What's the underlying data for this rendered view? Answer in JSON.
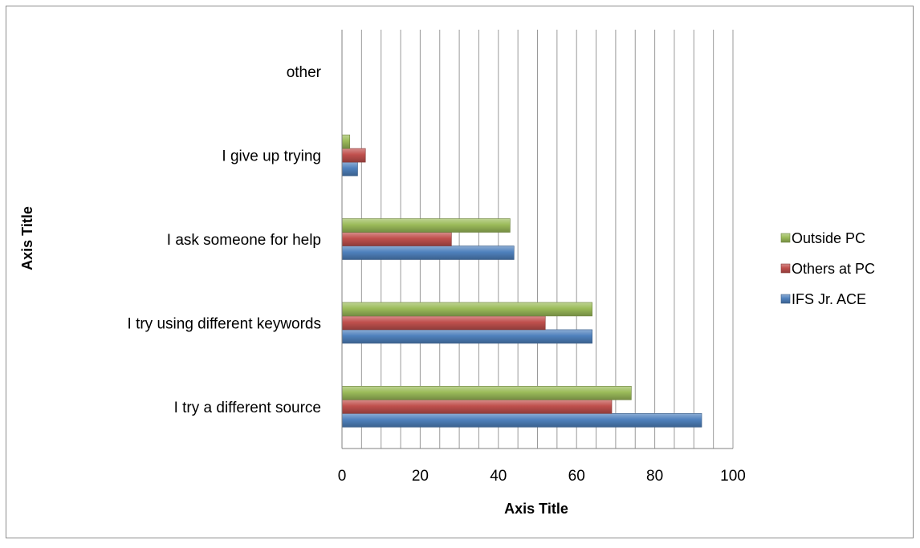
{
  "chart_data": {
    "type": "bar",
    "orientation": "horizontal",
    "categories": [
      "I try a different source",
      "I try using different keywords",
      "I ask someone for help",
      "I give up trying",
      "other"
    ],
    "series": [
      {
        "name": "IFS Jr. ACE",
        "values": [
          92,
          64,
          44,
          4,
          0
        ],
        "color": "#4f81bd"
      },
      {
        "name": "Others at PC",
        "values": [
          69,
          52,
          28,
          6,
          0
        ],
        "color": "#c0504d"
      },
      {
        "name": "Outside PC",
        "values": [
          74,
          64,
          43,
          2,
          0
        ],
        "color": "#9bbb59"
      }
    ],
    "xlabel": "Axis Title",
    "ylabel": "Axis Title",
    "xlim": [
      0,
      100
    ],
    "x_ticks": [
      "0",
      "20",
      "40",
      "60",
      "80",
      "100"
    ],
    "grid": "vertical",
    "legend_position": "right"
  }
}
